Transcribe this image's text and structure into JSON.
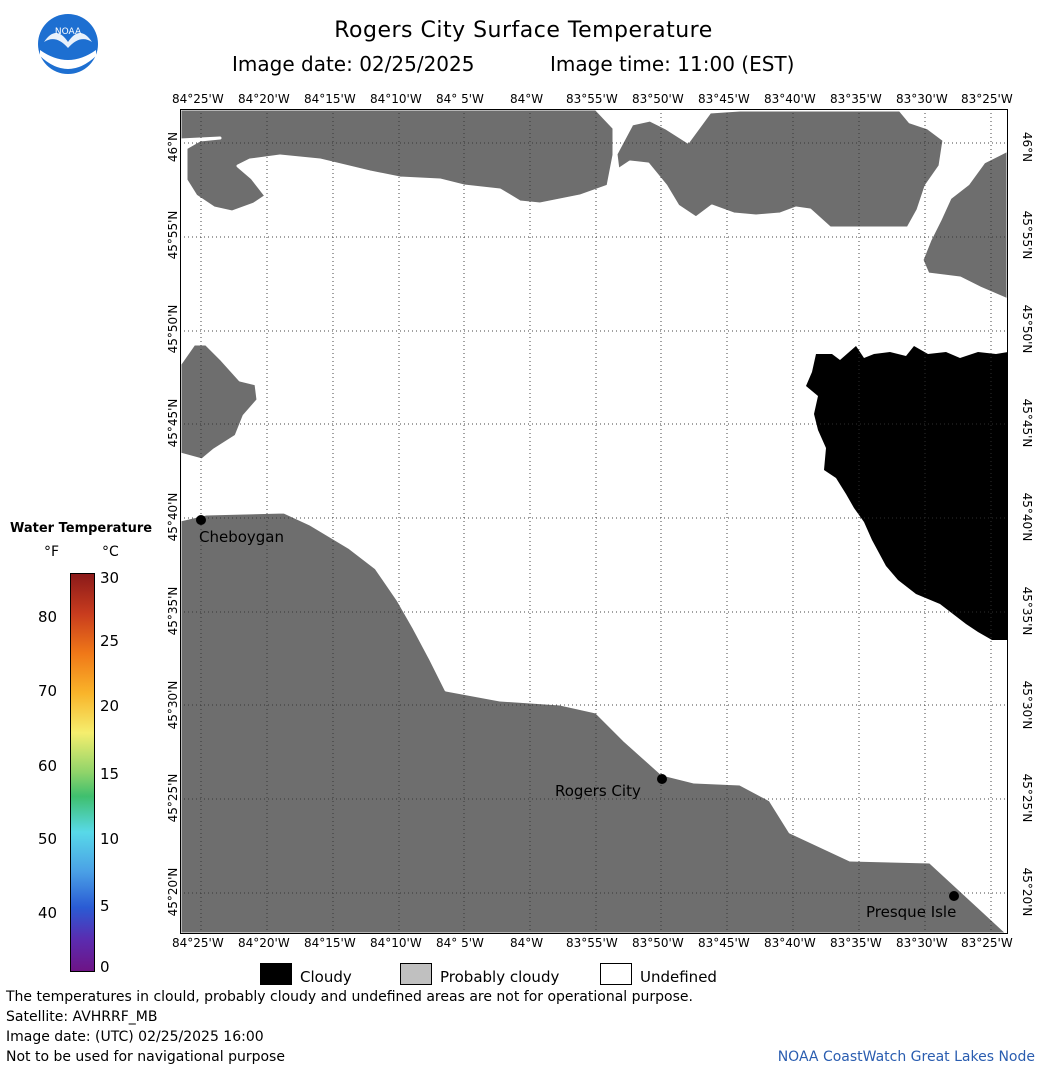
{
  "header": {
    "title": "Rogers City Surface Temperature",
    "image_date_label": "Image date: 02/25/2025",
    "image_time_label": "Image time: 11:00 (EST)"
  },
  "logo": {
    "text": "NOAA"
  },
  "longitude_ticks": [
    "84°25'W",
    "84°20'W",
    "84°15'W",
    "84°10'W",
    "84° 5'W",
    "84°W",
    "83°55'W",
    "83°50'W",
    "83°45'W",
    "83°40'W",
    "83°35'W",
    "83°30'W",
    "83°25'W"
  ],
  "latitude_ticks": [
    "46°N",
    "45°55'N",
    "45°50'N",
    "45°45'N",
    "45°40'N",
    "45°35'N",
    "45°30'N",
    "45°25'N",
    "45°20'N"
  ],
  "places": [
    {
      "name": "Cheboygan"
    },
    {
      "name": "Rogers City"
    },
    {
      "name": "Presque Isle"
    }
  ],
  "legend": {
    "title": "Water Temperature",
    "unit_f": "°F",
    "unit_c": "°C",
    "fahrenheit_ticks": [
      "80",
      "70",
      "60",
      "50",
      "40"
    ],
    "celsius_ticks": [
      "30",
      "25",
      "20",
      "15",
      "10",
      "5",
      "0"
    ]
  },
  "key": {
    "cloudy": "Cloudy",
    "probably_cloudy": "Probably cloudy",
    "undefined": "Undefined"
  },
  "colors": {
    "land": "#6e6e6e",
    "cloudy": "#000000",
    "probably_cloudy": "#c0c0c0",
    "undefined": "#ffffff",
    "credit": "#2a5db0"
  },
  "footer": {
    "disclaimer": "The temperatures in clould, probably cloudy and undefined areas are not for operational purpose.",
    "satellite": "Satellite: AVHRRF_MB",
    "utc_date": "Image date: (UTC) 02/25/2025  16:00",
    "navigation": "Not to be used for navigational purpose",
    "credit": "NOAA CoastWatch Great Lakes Node"
  }
}
